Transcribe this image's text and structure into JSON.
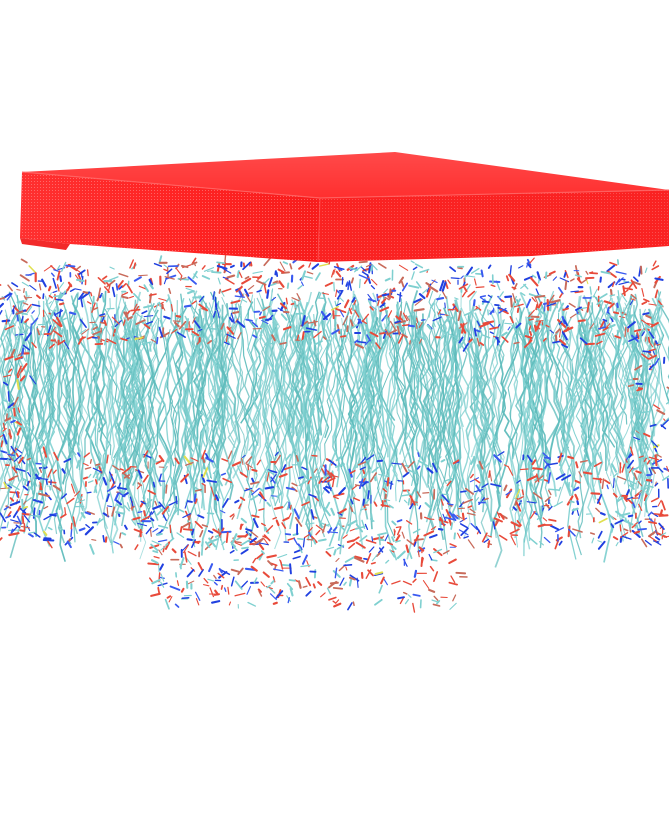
{
  "scene": {
    "background_color": "#ffffff",
    "slab": {
      "top_color": "#ff3b3b",
      "front_color": "#ff2a2a",
      "side_color": "#f02020",
      "texture_color": "#ffd0d0"
    },
    "membrane": {
      "tail_color": "#7fd0d0",
      "tail_color_dark": "#5fbcbc",
      "headgroup_colors": [
        "#e84a3a",
        "#c86a5a",
        "#2040e0",
        "#3a5af0",
        "#7fd0d0",
        "#e0e050"
      ]
    }
  }
}
